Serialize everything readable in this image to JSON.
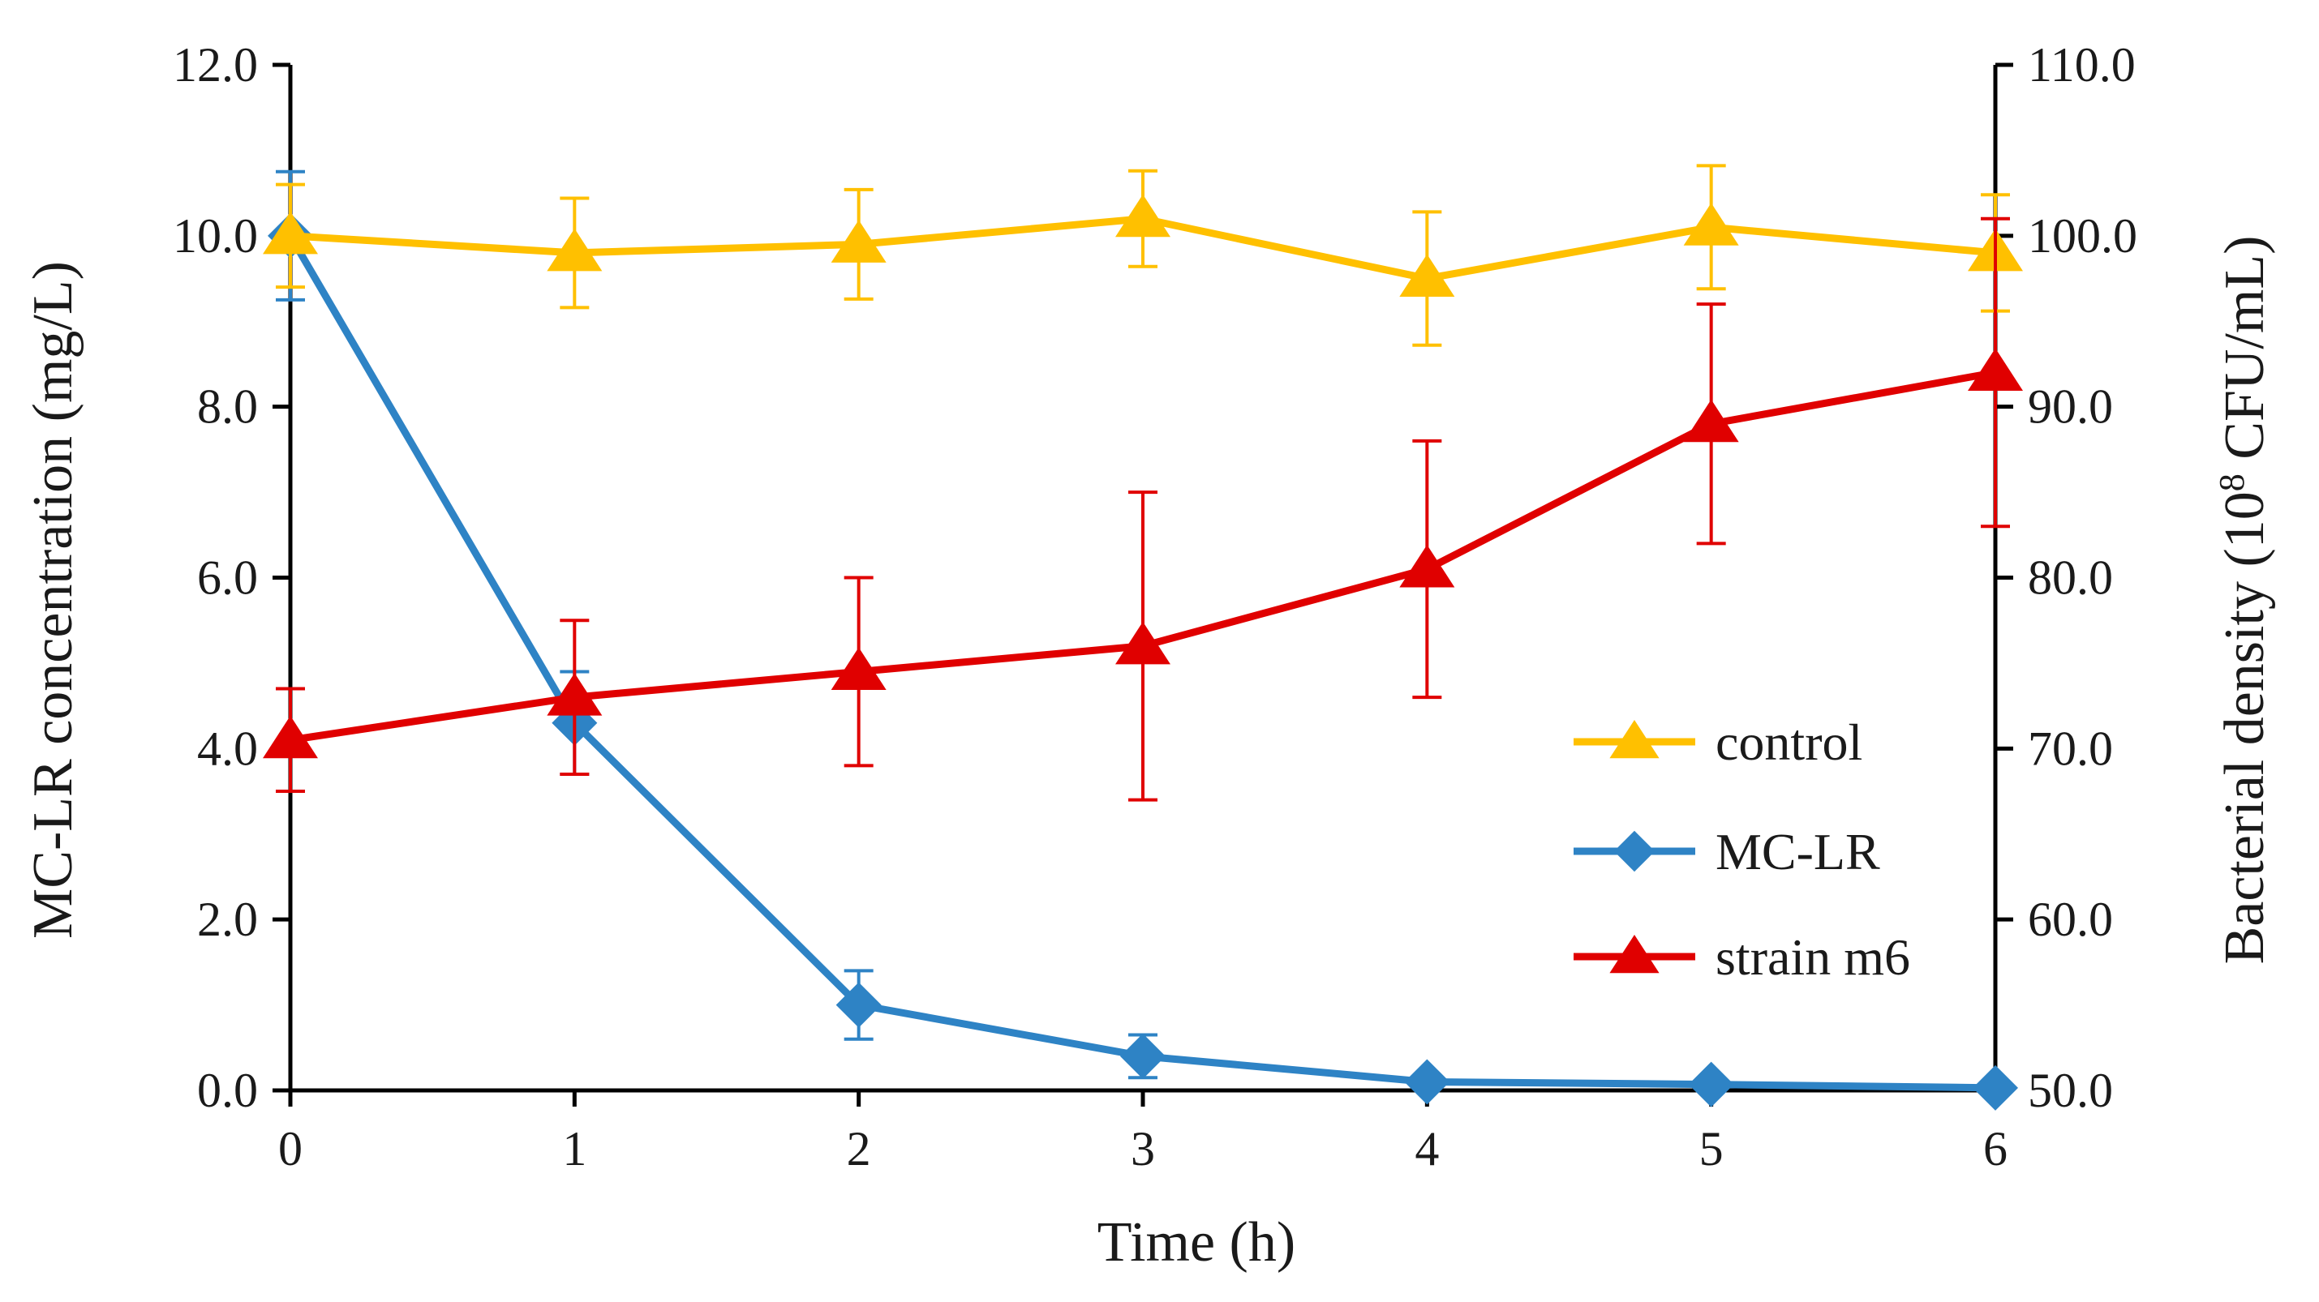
{
  "chart_data": {
    "type": "line",
    "x": [
      0,
      1,
      2,
      3,
      4,
      5,
      6
    ],
    "xlabel": "Time (h)",
    "ylabel_left": "MC-LR concentration (mg/L)",
    "ylabel_right_prefix": "Bacterial density (10",
    "ylabel_right_exp": "8",
    "ylabel_right_suffix": " CFU/mL)",
    "ylim_left": [
      0,
      12
    ],
    "ylim_right": [
      50,
      110
    ],
    "left_ticks": [
      "0.0",
      "2.0",
      "4.0",
      "6.0",
      "8.0",
      "10.0",
      "12.0"
    ],
    "right_ticks": [
      "50.0",
      "60.0",
      "70.0",
      "80.0",
      "90.0",
      "100.0",
      "110.0"
    ],
    "x_ticks": [
      "0",
      "1",
      "2",
      "3",
      "4",
      "5",
      "6"
    ],
    "grid": false,
    "legend_position": "center-right",
    "series": [
      {
        "name": "control",
        "axis": "right",
        "color": "#FFC000",
        "marker": "triangle",
        "values": [
          100.0,
          99.0,
          99.5,
          101.0,
          97.5,
          100.5,
          99.0
        ],
        "errors": [
          3.0,
          3.2,
          3.2,
          2.8,
          3.9,
          3.6,
          3.4
        ]
      },
      {
        "name": "MC-LR",
        "axis": "left",
        "color": "#2E83C5",
        "marker": "diamond",
        "values": [
          10.0,
          4.3,
          1.0,
          0.4,
          0.1,
          0.07,
          0.03
        ],
        "errors": [
          0.75,
          0.6,
          0.4,
          0.25,
          0.05,
          0.04,
          0.03
        ]
      },
      {
        "name": "strain m6",
        "axis": "right",
        "color": "#E00000",
        "marker": "triangle",
        "values": [
          70.5,
          73.0,
          74.5,
          76.0,
          80.5,
          89.0,
          92.0
        ],
        "errors": [
          3.0,
          4.5,
          5.5,
          9.0,
          7.5,
          7.0,
          9.0
        ]
      }
    ]
  }
}
